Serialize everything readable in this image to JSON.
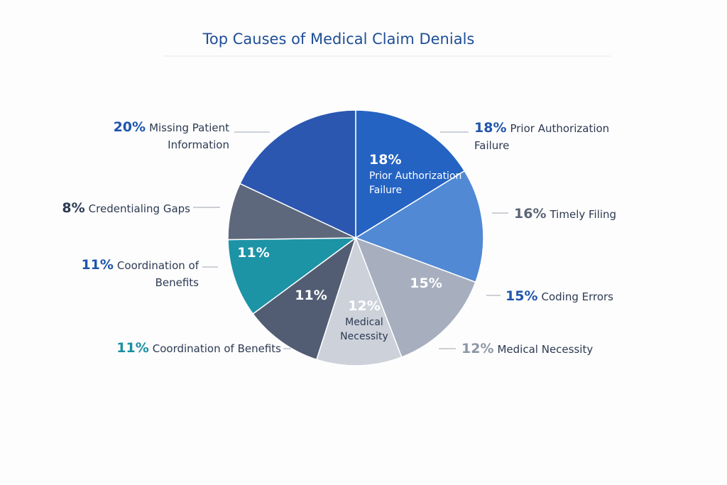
{
  "chart_data": {
    "type": "pie",
    "title": "Top Causes of Medical Claim Denials",
    "categories": [
      "Prior Authorization Failure",
      "Timely Filing",
      "Coding Errors",
      "Medical Necessity",
      "Coordination of Benefits",
      "Coordination of Benefits",
      "Credentialing Gaps",
      "Missing Patient Information"
    ],
    "values": [
      18,
      16,
      15,
      12,
      11,
      11,
      8,
      20
    ],
    "value_labels": [
      "18%",
      "16%",
      "15%",
      "12%",
      "11%",
      "11%",
      "8%",
      "20%"
    ],
    "colors": [
      "#2463c2",
      "#5189d4",
      "#a7afbf",
      "#ccd1da",
      "#525d73",
      "#1d93a6",
      "#5e687c",
      "#2b57b0"
    ]
  }
}
